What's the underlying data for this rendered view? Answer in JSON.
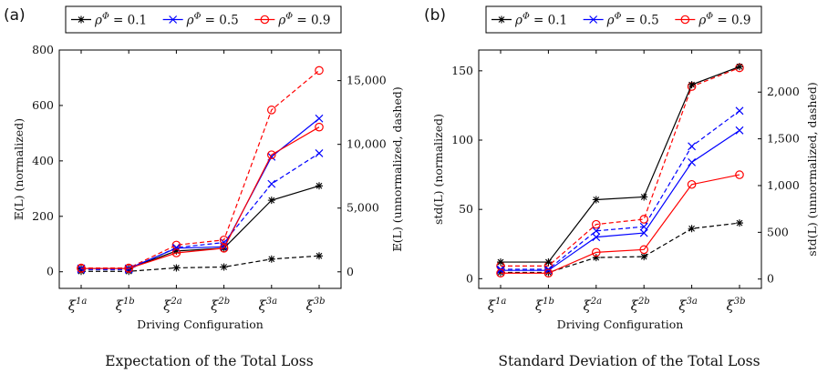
{
  "chart_data": [
    {
      "type": "line",
      "panel_label": "(a)",
      "caption": "Expectation of the Total Loss",
      "xlabel": "Driving Configuration",
      "ylabel_left": "𝔼(L) (normalized)",
      "ylabel_right": "𝔼(L) (unnormalized, dashed)",
      "categories": [
        {
          "base": "ξ",
          "sup": "1a"
        },
        {
          "base": "ξ",
          "sup": "1b"
        },
        {
          "base": "ξ",
          "sup": "2a"
        },
        {
          "base": "ξ",
          "sup": "2b"
        },
        {
          "base": "ξ",
          "sup": "3a"
        },
        {
          "base": "ξ",
          "sup": "3b"
        }
      ],
      "ylim_left": [
        -60,
        800
      ],
      "yticks_left": [
        0,
        200,
        400,
        600,
        800
      ],
      "ytick_labels_left": [
        "0",
        "200",
        "400",
        "600",
        "800"
      ],
      "ylim_right": [
        -1300,
        17400
      ],
      "yticks_right": [
        0,
        5000,
        10000,
        15000
      ],
      "ytick_labels_right": [
        "0",
        "5,000",
        "10,000",
        "15,000"
      ],
      "series": [
        {
          "name": "ρΦ = 0.1",
          "label_sym": "ρ",
          "label_sup": "Φ",
          "label_val": " = 0.1",
          "color": "#000000",
          "marker": "star",
          "axis": "left",
          "dashed": false,
          "values": [
            12,
            12,
            75,
            85,
            258,
            310
          ]
        },
        {
          "name": "ρΦ = 0.5",
          "label_sym": "ρ",
          "label_sup": "Φ",
          "label_val": " = 0.5",
          "color": "#0000ff",
          "marker": "x",
          "axis": "left",
          "dashed": false,
          "values": [
            12,
            12,
            85,
            90,
            415,
            553
          ]
        },
        {
          "name": "ρΦ = 0.9",
          "label_sym": "ρ",
          "label_sup": "Φ",
          "label_val": " = 0.9",
          "color": "#ff0000",
          "marker": "circle",
          "axis": "left",
          "dashed": false,
          "values": [
            12,
            12,
            68,
            85,
            422,
            522
          ]
        },
        {
          "name": "",
          "color": "#000000",
          "marker": "star",
          "axis": "right",
          "dashed": true,
          "values": [
            40,
            40,
            310,
            380,
            1000,
            1250
          ]
        },
        {
          "name": "",
          "color": "#0000ff",
          "marker": "x",
          "axis": "right",
          "dashed": true,
          "values": [
            180,
            180,
            1900,
            2300,
            6900,
            9300
          ]
        },
        {
          "name": "",
          "color": "#ff0000",
          "marker": "circle",
          "axis": "right",
          "dashed": true,
          "values": [
            300,
            300,
            2100,
            2500,
            12700,
            15800
          ]
        }
      ],
      "legend_position": "top",
      "grid": false
    },
    {
      "type": "line",
      "panel_label": "(b)",
      "caption": "Standard Deviation of the Total Loss",
      "xlabel": "Driving Configuration",
      "ylabel_left": "std(L) (normalized)",
      "ylabel_right": "std(L) (unnormalized, dashed)",
      "categories": [
        {
          "base": "ξ",
          "sup": "1a"
        },
        {
          "base": "ξ",
          "sup": "1b"
        },
        {
          "base": "ξ",
          "sup": "2a"
        },
        {
          "base": "ξ",
          "sup": "2b"
        },
        {
          "base": "ξ",
          "sup": "3a"
        },
        {
          "base": "ξ",
          "sup": "3b"
        }
      ],
      "ylim_left": [
        -7,
        165
      ],
      "yticks_left": [
        0,
        50,
        100,
        150
      ],
      "ytick_labels_left": [
        "0",
        "50",
        "100",
        "150"
      ],
      "ylim_right": [
        -100,
        2450
      ],
      "yticks_right": [
        0,
        500,
        1000,
        1500,
        2000
      ],
      "ytick_labels_right": [
        "0",
        "500",
        "1,000",
        "1,500",
        "2,000"
      ],
      "series": [
        {
          "name": "ρΦ = 0.1",
          "label_sym": "ρ",
          "label_sup": "Φ",
          "label_val": " = 0.1",
          "color": "#000000",
          "marker": "star",
          "axis": "left",
          "dashed": false,
          "values": [
            12,
            12,
            57,
            59,
            140,
            153
          ]
        },
        {
          "name": "ρΦ = 0.5",
          "label_sym": "ρ",
          "label_sup": "Φ",
          "label_val": " = 0.5",
          "color": "#0000ff",
          "marker": "x",
          "axis": "left",
          "dashed": false,
          "values": [
            6,
            6,
            30,
            33,
            84,
            107
          ]
        },
        {
          "name": "ρΦ = 0.9",
          "label_sym": "ρ",
          "label_sup": "Φ",
          "label_val": " = 0.9",
          "color": "#ff0000",
          "marker": "circle",
          "axis": "left",
          "dashed": false,
          "values": [
            4,
            4,
            19,
            21,
            68,
            75
          ]
        },
        {
          "name": "",
          "color": "#000000",
          "marker": "star",
          "axis": "right",
          "dashed": true,
          "values": [
            70,
            70,
            230,
            240,
            540,
            600
          ]
        },
        {
          "name": "",
          "color": "#0000ff",
          "marker": "x",
          "axis": "right",
          "dashed": true,
          "values": [
            105,
            105,
            515,
            560,
            1420,
            1800
          ]
        },
        {
          "name": "",
          "color": "#ff0000",
          "marker": "circle",
          "axis": "right",
          "dashed": true,
          "values": [
            140,
            140,
            585,
            640,
            2060,
            2260
          ]
        }
      ],
      "legend_position": "top",
      "grid": false
    }
  ]
}
